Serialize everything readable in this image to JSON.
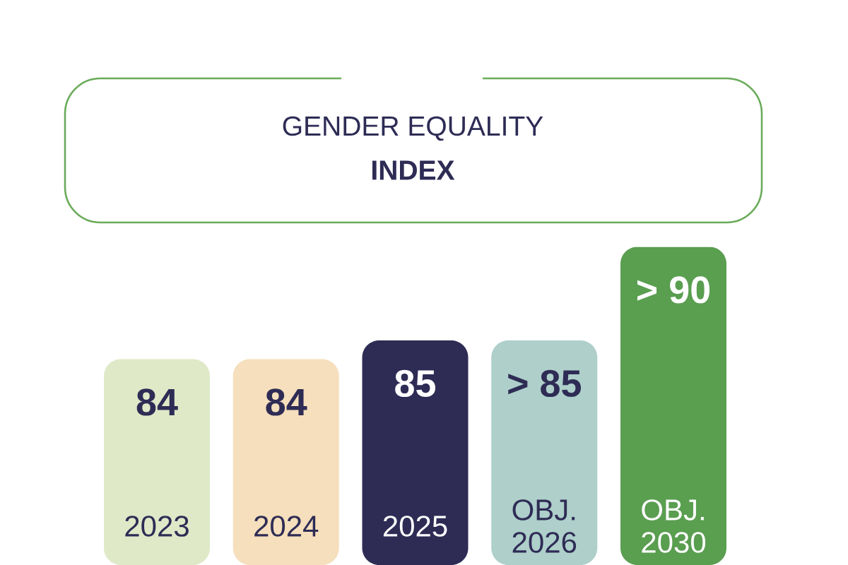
{
  "chart_data": {
    "type": "bar",
    "title": "GENDER EQUALITY",
    "subtitle": "INDEX",
    "categories": [
      "2023",
      "2024",
      "2025",
      "OBJ. 2026",
      "OBJ. 2030"
    ],
    "values": [
      84,
      84,
      85,
      85,
      90
    ],
    "value_labels": [
      "84",
      "84",
      "85",
      "> 85",
      "> 90"
    ],
    "colors": [
      "#dfe9c8",
      "#f5dfbc",
      "#2e2c55",
      "#aecfca",
      "#5a9e50"
    ],
    "ylim": [
      73,
      90
    ],
    "tick_labels": "x"
  }
}
